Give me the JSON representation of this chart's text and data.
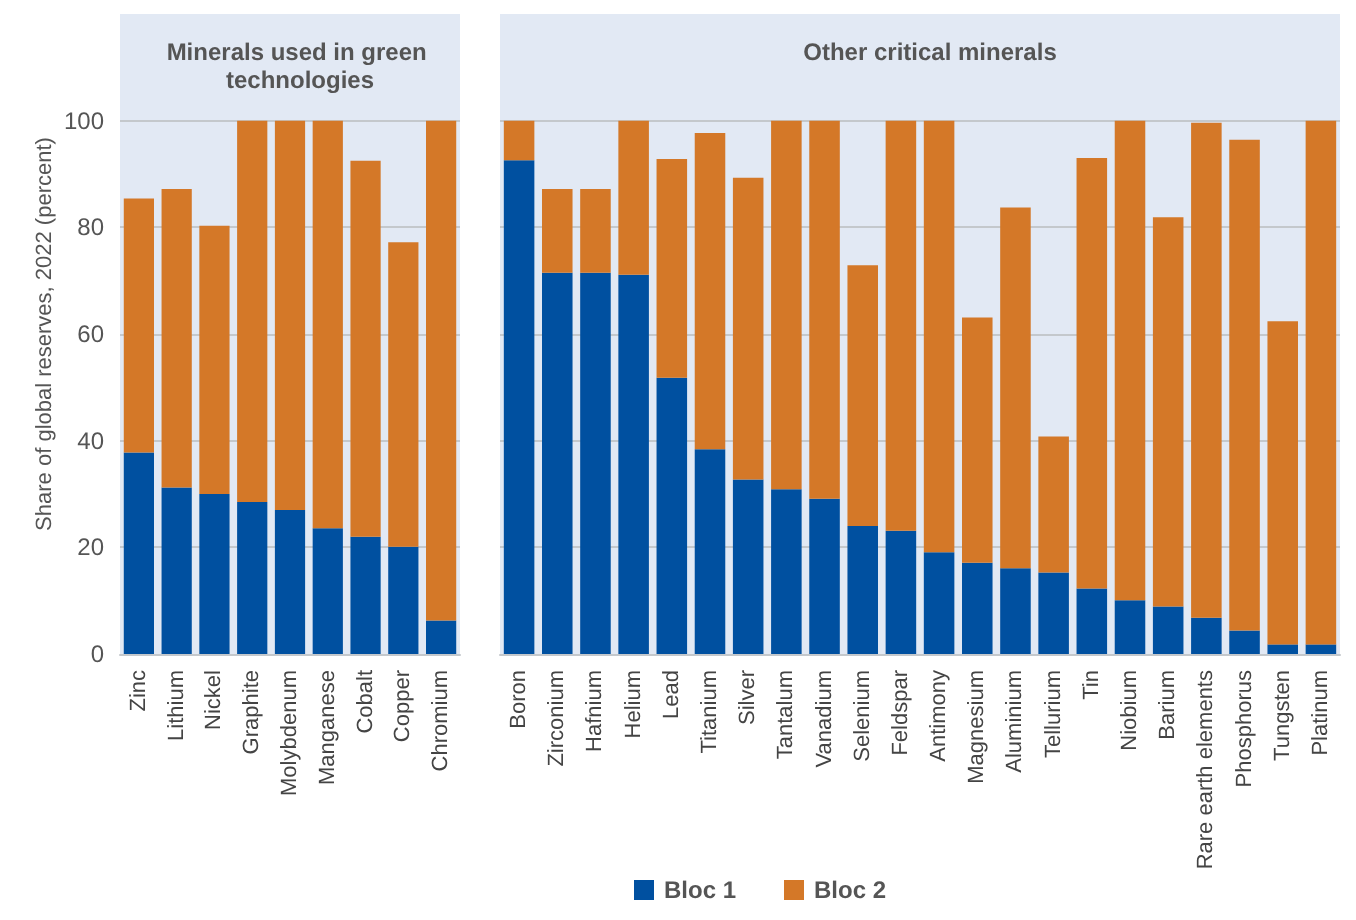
{
  "chart_data": [
    {
      "type": "bar",
      "title": "Minerals used in green technologies",
      "ylabel": "Share of global reserves, 2022 (percent)",
      "stacked": true,
      "grid": "y",
      "legend": "bottom",
      "categories": [
        "Zinc",
        "Lithium",
        "Nickel",
        "Graphite",
        "Molybdenum",
        "Manganese",
        "Cobalt",
        "Copper",
        "Chromium"
      ],
      "ylim": [
        0,
        120
      ],
      "yticks": [
        0,
        20,
        40,
        60,
        80,
        100
      ],
      "series": [
        {
          "name": "Bloc 1",
          "color": "#0050a0",
          "values": [
            37.8,
            31.2,
            30.0,
            28.5,
            27.0,
            23.6,
            22.0,
            20.1,
            6.3
          ]
        },
        {
          "name": "Bloc 2",
          "color": "#d47828",
          "values": [
            47.6,
            56.0,
            50.3,
            71.5,
            73.0,
            76.4,
            70.5,
            57.1,
            93.7
          ]
        }
      ]
    },
    {
      "type": "bar",
      "title": "Other critical minerals",
      "stacked": true,
      "grid": "y",
      "tick_labels": "x",
      "categories": [
        "Boron",
        "Zirconium",
        "Hafnium",
        "Helium",
        "Lead",
        "Titanium",
        "Silver",
        "Tantalum",
        "Vanadium",
        "Selenium",
        "Feldspar",
        "Antimony",
        "Magnesium",
        "Aluminium",
        "Tellurium",
        "Tin",
        "Niobium",
        "Barium",
        "Rare earth elements",
        "Phosphorus",
        "Tungsten",
        "Platinum"
      ],
      "ylim": [
        0,
        120
      ],
      "yticks": [
        0,
        20,
        40,
        60,
        80,
        100
      ],
      "series": [
        {
          "color": "#0050a0",
          "values": [
            92.6,
            71.5,
            71.5,
            71.1,
            51.8,
            38.4,
            32.7,
            30.9,
            29.1,
            24.0,
            23.1,
            19.1,
            17.1,
            16.1,
            15.3,
            12.3,
            10.1,
            8.9,
            6.8,
            4.4,
            1.8,
            1.8
          ]
        },
        {
          "color": "#d47828",
          "values": [
            7.4,
            15.7,
            15.7,
            28.9,
            41.0,
            59.3,
            56.6,
            69.1,
            70.9,
            48.9,
            76.9,
            80.9,
            46.0,
            67.6,
            25.5,
            80.7,
            89.9,
            73.0,
            92.8,
            92.0,
            60.6,
            98.2
          ]
        }
      ]
    }
  ]
}
